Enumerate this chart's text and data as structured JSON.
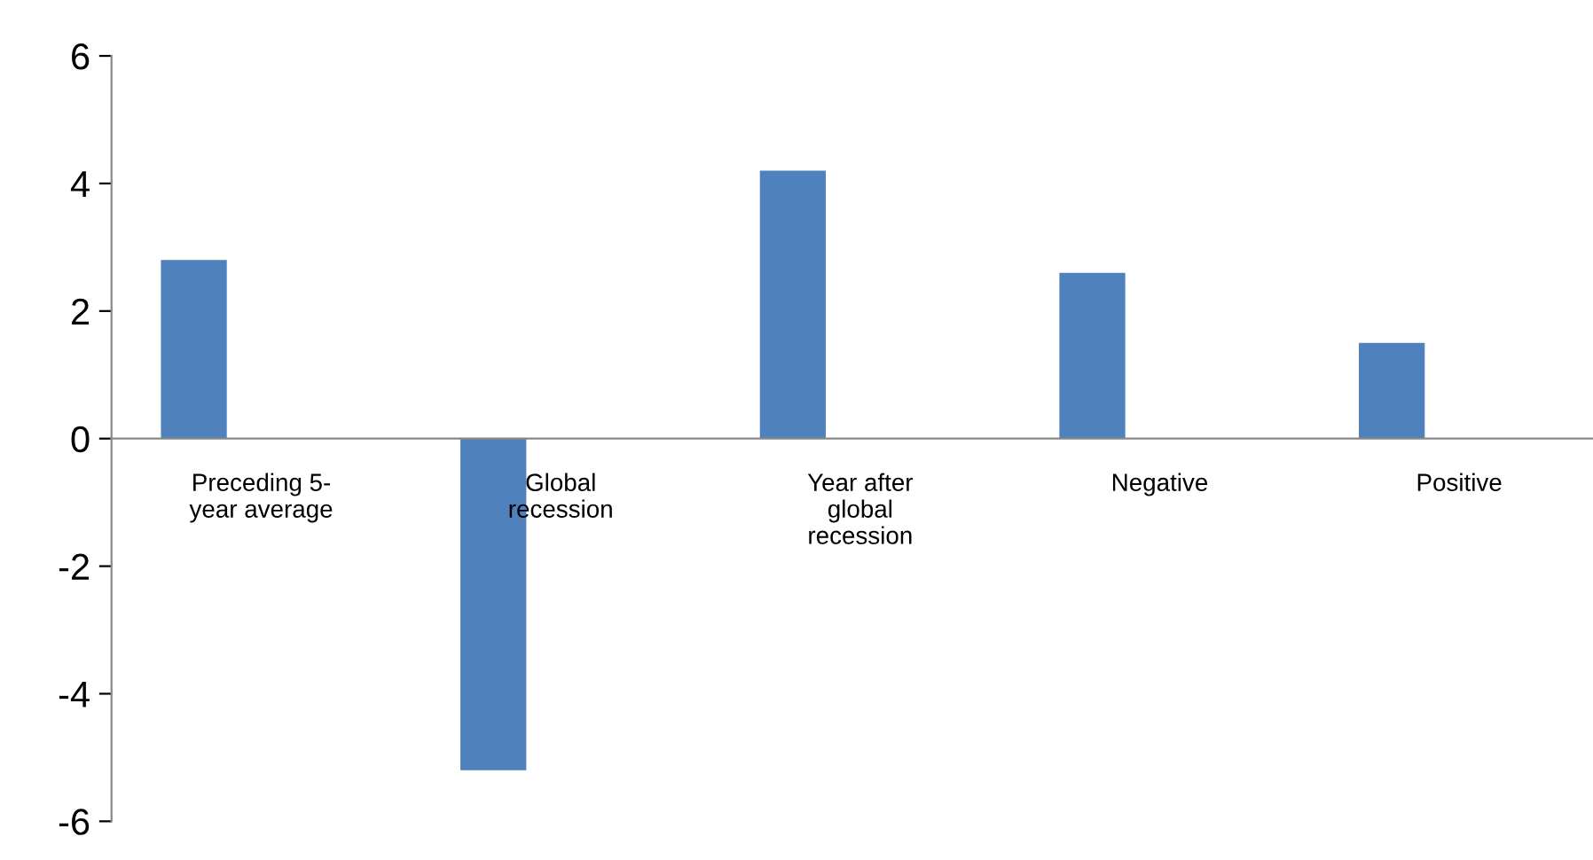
{
  "chart_data": {
    "type": "bar",
    "categories": [
      "Preceding 5-\nyear average",
      "Global\nrecession",
      "Year after\nglobal\nrecession",
      "Negative",
      "Positive"
    ],
    "values": [
      2.8,
      -5.2,
      4.2,
      2.6,
      1.5
    ],
    "color": "#4f81bd",
    "ylim": [
      -6,
      6
    ],
    "yticks": [
      {
        "value": -6,
        "label": "-6"
      },
      {
        "value": -4,
        "label": "-4"
      },
      {
        "value": -2,
        "label": "-2"
      },
      0,
      2,
      4,
      6
    ],
    "grid": false,
    "legend": false
  }
}
